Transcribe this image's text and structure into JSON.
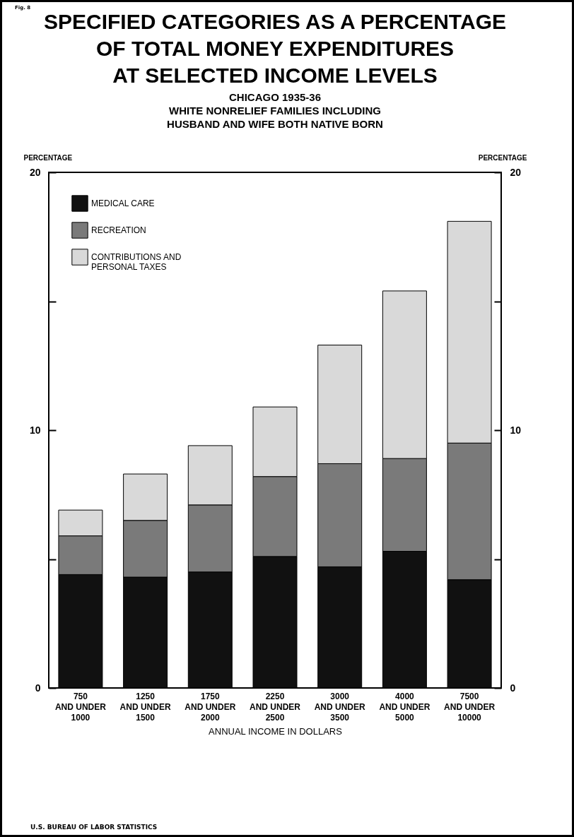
{
  "chart_data": {
    "type": "bar",
    "title": "SPECIFIED CATEGORIES AS A PERCENTAGE\nOF TOTAL MONEY EXPENDITURES\nAT SELECTED INCOME LEVELS",
    "subtitle": "CHICAGO 1935-36\nWHITE NONRELIEF FAMILIES INCLUDING\nHUSBAND AND WIFE BOTH NATIVE BORN",
    "xlabel": "ANNUAL INCOME IN DOLLARS",
    "ylabel": "PERCENTAGE",
    "y2label": "PERCENTAGE",
    "categories": [
      "750\nAND UNDER\n1000",
      "1250\nAND UNDER\n1500",
      "1750\nAND UNDER\n2000",
      "2250\nAND UNDER\n2500",
      "3000\nAND UNDER\n3500",
      "4000\nAND UNDER\n5000",
      "7500\nAND UNDER\n10000"
    ],
    "stacked": true,
    "series": [
      {
        "name": "MEDICAL CARE",
        "color": "#111111",
        "values": [
          4.4,
          4.3,
          4.5,
          5.1,
          4.7,
          5.3,
          4.2
        ]
      },
      {
        "name": "RECREATION",
        "color": "#7a7a7a",
        "values": [
          1.5,
          2.2,
          2.6,
          3.1,
          4.0,
          3.6,
          5.3
        ]
      },
      {
        "name": "CONTRIBUTIONS AND\nPERSONAL TAXES",
        "color": "#d9d9d9",
        "values": [
          1.0,
          1.8,
          2.3,
          2.7,
          4.6,
          6.5,
          8.6
        ]
      }
    ],
    "ylim": [
      0,
      20
    ],
    "yticks": [
      0,
      {
        "value": 5,
        "label": null
      },
      10,
      {
        "value": 15,
        "label": null
      },
      20
    ],
    "y2lim": [
      0,
      20
    ],
    "y2ticks": [
      0,
      {
        "value": 5,
        "label": null
      },
      10,
      {
        "value": 15,
        "label": null
      },
      20
    ],
    "grid": false,
    "legend": "top left",
    "annotations": [
      "Fig. 8",
      "U.S. BUREAU OF LABOR STATISTICS"
    ]
  }
}
